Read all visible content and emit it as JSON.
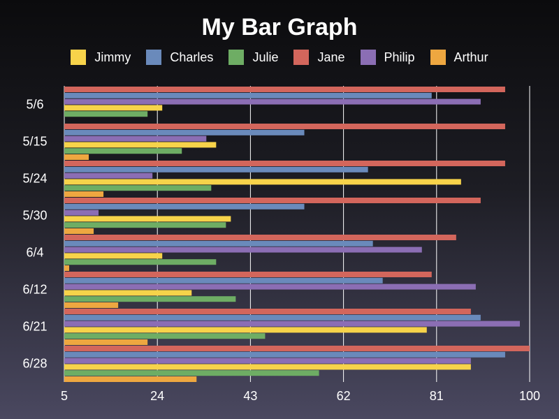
{
  "chart_data": {
    "type": "bar",
    "orientation": "horizontal",
    "title": "My Bar Graph",
    "xlabel": "",
    "ylabel": "",
    "xlim": [
      5,
      100
    ],
    "xticks": [
      "5",
      "24",
      "43",
      "62",
      "81",
      "100"
    ],
    "grid": "vertical",
    "legend_position": "top",
    "categories": [
      "5/6",
      "5/15",
      "5/24",
      "5/30",
      "6/4",
      "6/12",
      "6/21",
      "6/28"
    ],
    "series": [
      {
        "name": "Jimmy",
        "color": "#f7d34a",
        "values": [
          25,
          36,
          86,
          39,
          25,
          31,
          79,
          88
        ]
      },
      {
        "name": "Charles",
        "color": "#6a8abb",
        "values": [
          80,
          54,
          67,
          54,
          68,
          70,
          90,
          95
        ]
      },
      {
        "name": "Julie",
        "color": "#6ead64",
        "values": [
          22,
          29,
          35,
          38,
          36,
          40,
          46,
          57
        ]
      },
      {
        "name": "Jane",
        "color": "#d3665c",
        "values": [
          95,
          95,
          95,
          90,
          85,
          80,
          88,
          100
        ]
      },
      {
        "name": "Philip",
        "color": "#8b6eb4",
        "values": [
          90,
          34,
          23,
          12,
          78,
          89,
          98,
          88
        ]
      },
      {
        "name": "Arthur",
        "color": "#eea740",
        "values": [
          5,
          10,
          13,
          11,
          6,
          16,
          22,
          32
        ]
      }
    ]
  }
}
